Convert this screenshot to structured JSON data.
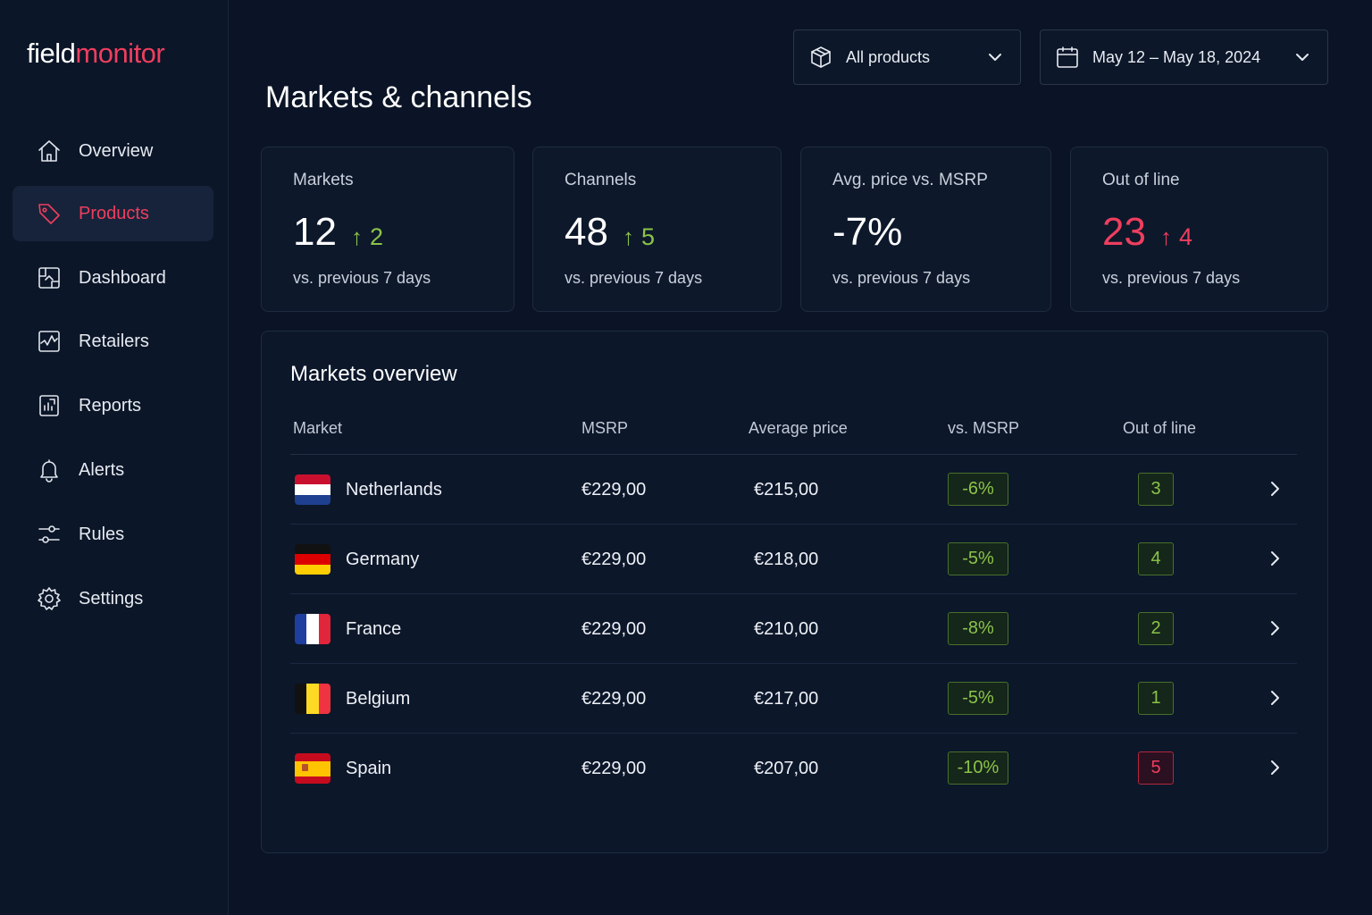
{
  "app": {
    "logo_part1": "field",
    "logo_part2": "monitor"
  },
  "sidebar": {
    "items": [
      {
        "label": "Overview",
        "icon": "home-icon"
      },
      {
        "label": "Products",
        "icon": "tag-icon",
        "active": true
      },
      {
        "label": "Dashboard",
        "icon": "dashboard-icon"
      },
      {
        "label": "Retailers",
        "icon": "retailers-icon"
      },
      {
        "label": "Reports",
        "icon": "reports-icon"
      },
      {
        "label": "Alerts",
        "icon": "bell-icon"
      },
      {
        "label": "Rules",
        "icon": "sliders-icon"
      },
      {
        "label": "Settings",
        "icon": "gear-icon"
      }
    ]
  },
  "header": {
    "title": "Markets & channels",
    "product_filter": "All products",
    "date_range": "May 12 – May 18, 2024"
  },
  "cards": [
    {
      "label": "Markets",
      "value": "12",
      "delta": "2",
      "delta_color": "green",
      "sub": "vs. previous 7 days"
    },
    {
      "label": "Channels",
      "value": "48",
      "delta": "5",
      "delta_color": "green",
      "sub": "vs. previous 7 days"
    },
    {
      "label": "Avg. price vs. MSRP",
      "value": "-7%",
      "delta": "",
      "sub": "vs. previous 7 days"
    },
    {
      "label": "Out of line",
      "value": "23",
      "delta": "4",
      "delta_color": "red",
      "sub": "vs. previous 7 days"
    }
  ],
  "markets_overview": {
    "title": "Markets overview",
    "columns": [
      "Market",
      "MSRP",
      "Average price",
      "vs. MSRP",
      "Out of line"
    ],
    "rows": [
      {
        "market": "Netherlands",
        "flag": "nl",
        "msrp": "€229,00",
        "avg": "€215,00",
        "vs": "-6%",
        "out": "3",
        "out_status": "green"
      },
      {
        "market": "Germany",
        "flag": "de",
        "msrp": "€229,00",
        "avg": "€218,00",
        "vs": "-5%",
        "out": "4",
        "out_status": "green"
      },
      {
        "market": "France",
        "flag": "fr",
        "msrp": "€229,00",
        "avg": "€210,00",
        "vs": "-8%",
        "out": "2",
        "out_status": "green"
      },
      {
        "market": "Belgium",
        "flag": "be",
        "msrp": "€229,00",
        "avg": "€217,00",
        "vs": "-5%",
        "out": "1",
        "out_status": "green"
      },
      {
        "market": "Spain",
        "flag": "es",
        "msrp": "€229,00",
        "avg": "€207,00",
        "vs": "-10%",
        "out": "5",
        "out_status": "red"
      }
    ]
  },
  "colors": {
    "accent": "#ef3e5e",
    "positive": "#8bc34a",
    "background": "#0a1426"
  }
}
